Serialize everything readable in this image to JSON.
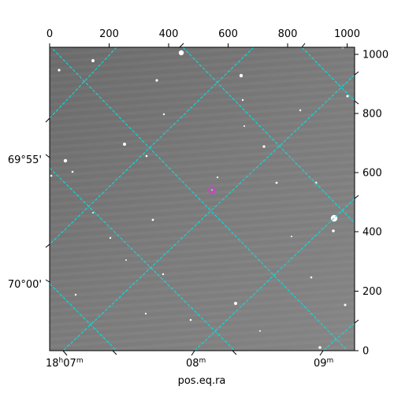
{
  "figure": {
    "xlabel": "pos.eq.ra",
    "top_ticks": [
      "0",
      "200",
      "400",
      "600",
      "800",
      "1000"
    ],
    "right_ticks": [
      "0",
      "200",
      "400",
      "600",
      "800",
      "1000"
    ],
    "ra_ticks": [
      {
        "main": "18",
        "sup1": "h",
        "mid": "07",
        "sup2": "m"
      },
      {
        "main": "",
        "sup1": "",
        "mid": "08",
        "sup2": "m"
      },
      {
        "main": "",
        "sup1": "",
        "mid": "09",
        "sup2": "m"
      }
    ],
    "dec_ticks": [
      "69°55'",
      "70°00'"
    ],
    "colors": {
      "grid": "#00e5e5",
      "marker": "#d040d0",
      "background": "#808080"
    }
  }
}
